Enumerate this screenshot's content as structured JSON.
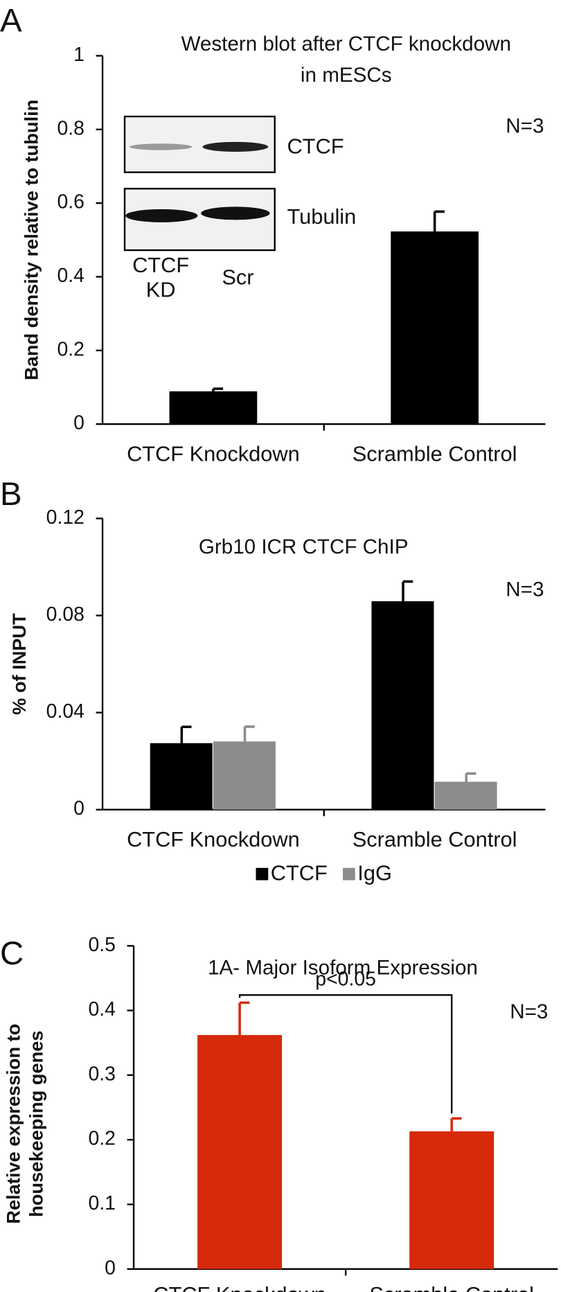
{
  "chart_data": [
    {
      "type": "bar",
      "panel_label": "A",
      "title_lines": [
        "Western blot after CTCF knockdown",
        "in mESCs"
      ],
      "y_label": "Band density relative to tubulin",
      "annotation": "N=3",
      "categories": [
        "CTCF Knockdown",
        "Scramble Control"
      ],
      "values": [
        0.089,
        0.523
      ],
      "errors": [
        0.007,
        0.054
      ],
      "color": "#000000",
      "ylim": [
        0,
        1
      ],
      "yticks": [
        0,
        0.2,
        0.4,
        0.6,
        0.8,
        1
      ],
      "inset": {
        "blot_labels": [
          "CTCF",
          "Tubulin"
        ],
        "lane_labels": [
          [
            "CTCF",
            "KD"
          ],
          [
            "Scr"
          ]
        ]
      }
    },
    {
      "type": "bar",
      "panel_label": "B",
      "title_lines": [
        "Grb10 ICR CTCF ChIP"
      ],
      "y_label": "% of INPUT",
      "annotation": "N=3",
      "categories": [
        "CTCF Knockdown",
        "Scramble Control"
      ],
      "series": [
        {
          "name": "CTCF",
          "color": "#000000",
          "values": [
            0.0274,
            0.0859
          ],
          "errors": [
            0.0067,
            0.0081
          ]
        },
        {
          "name": "IgG",
          "color": "#8c8c8c",
          "values": [
            0.0281,
            0.0115
          ],
          "errors": [
            0.0061,
            0.0034
          ]
        }
      ],
      "ylim": [
        0,
        0.12
      ],
      "yticks": [
        0,
        0.04,
        0.08,
        0.12
      ]
    },
    {
      "type": "bar",
      "panel_label": "C",
      "title_lines": [
        "1A- Major Isoform Expression"
      ],
      "y_label_lines": [
        "Relative expression to",
        "housekeeping genes"
      ],
      "annotation": "N=3",
      "categories": [
        "CTCF Knockdown",
        "Scramble Control"
      ],
      "values": [
        0.362,
        0.213
      ],
      "errors": [
        0.05,
        0.02
      ],
      "color": "#d62a0a",
      "ylim": [
        0,
        0.5
      ],
      "yticks": [
        0,
        0.1,
        0.2,
        0.3,
        0.4,
        0.5
      ],
      "significance": {
        "label": "p<0.05"
      }
    }
  ]
}
